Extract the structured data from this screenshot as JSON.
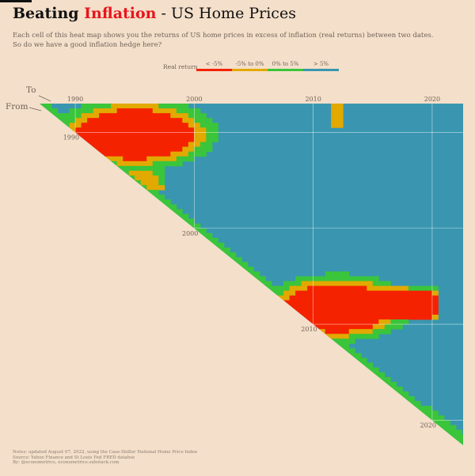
{
  "header": {
    "title_part1": "Beating ",
    "title_highlight": "Inflation",
    "title_part2": " - US Home Prices",
    "subtitle_line1": "Each cell of this heat map shows you the returns of US home prices in excess of inflation (real returns) between two dates.",
    "subtitle_line2": "So do we have a good inflation hedge here?"
  },
  "legend": {
    "title": "Real return",
    "items": [
      {
        "label": "< -5%",
        "color": "#f52200"
      },
      {
        "label": "-5% to 0%",
        "color": "#e2a900"
      },
      {
        "label": "0% to 5%",
        "color": "#3ac53b"
      },
      {
        "label": "> 5%",
        "color": "#3a96b0"
      }
    ]
  },
  "chart_data": {
    "type": "heatmap",
    "x_axis_label": "To",
    "y_axis_label": "From",
    "x_ticks": [
      1990,
      2000,
      2010,
      2020
    ],
    "y_ticks": [
      1990,
      2000,
      2010,
      2020
    ],
    "x_range": [
      1987,
      2022.6
    ],
    "y_range": [
      1987,
      2022.6
    ],
    "categories": [
      "< -5%",
      "-5% to 0%",
      "0% to 5%",
      "> 5%"
    ],
    "background_category": "> 5%",
    "regions": [
      {
        "category": "< -5%",
        "from": [
          1989.8,
          1996.6
        ],
        "to": [
          1990.5,
          1999.6
        ],
        "shape": "blob"
      },
      {
        "category": "-5% to 0%",
        "from": [
          1989.3,
          1991.5
        ],
        "to": [
          1989.5,
          1998.2
        ],
        "shape": "band"
      },
      {
        "category": "< -5%",
        "from": [
          2004.5,
          2012.3
        ],
        "to": [
          2008.2,
          2020.7
        ],
        "shape": "blob"
      },
      {
        "category": "-5% to 0%",
        "from": [
          2007.5,
          2009.5
        ],
        "to": [
          2012.0,
          2012.3
        ],
        "shape": "spot"
      }
    ]
  },
  "footer": {
    "line1": "Notes: updated August 07, 2022, using the Case-Shiller National Home Price Index",
    "line2": "Source: Yahoo Finance and St Louis Fed FRED databse",
    "line3": "By: @econometrics, econometrics.substack.com"
  }
}
